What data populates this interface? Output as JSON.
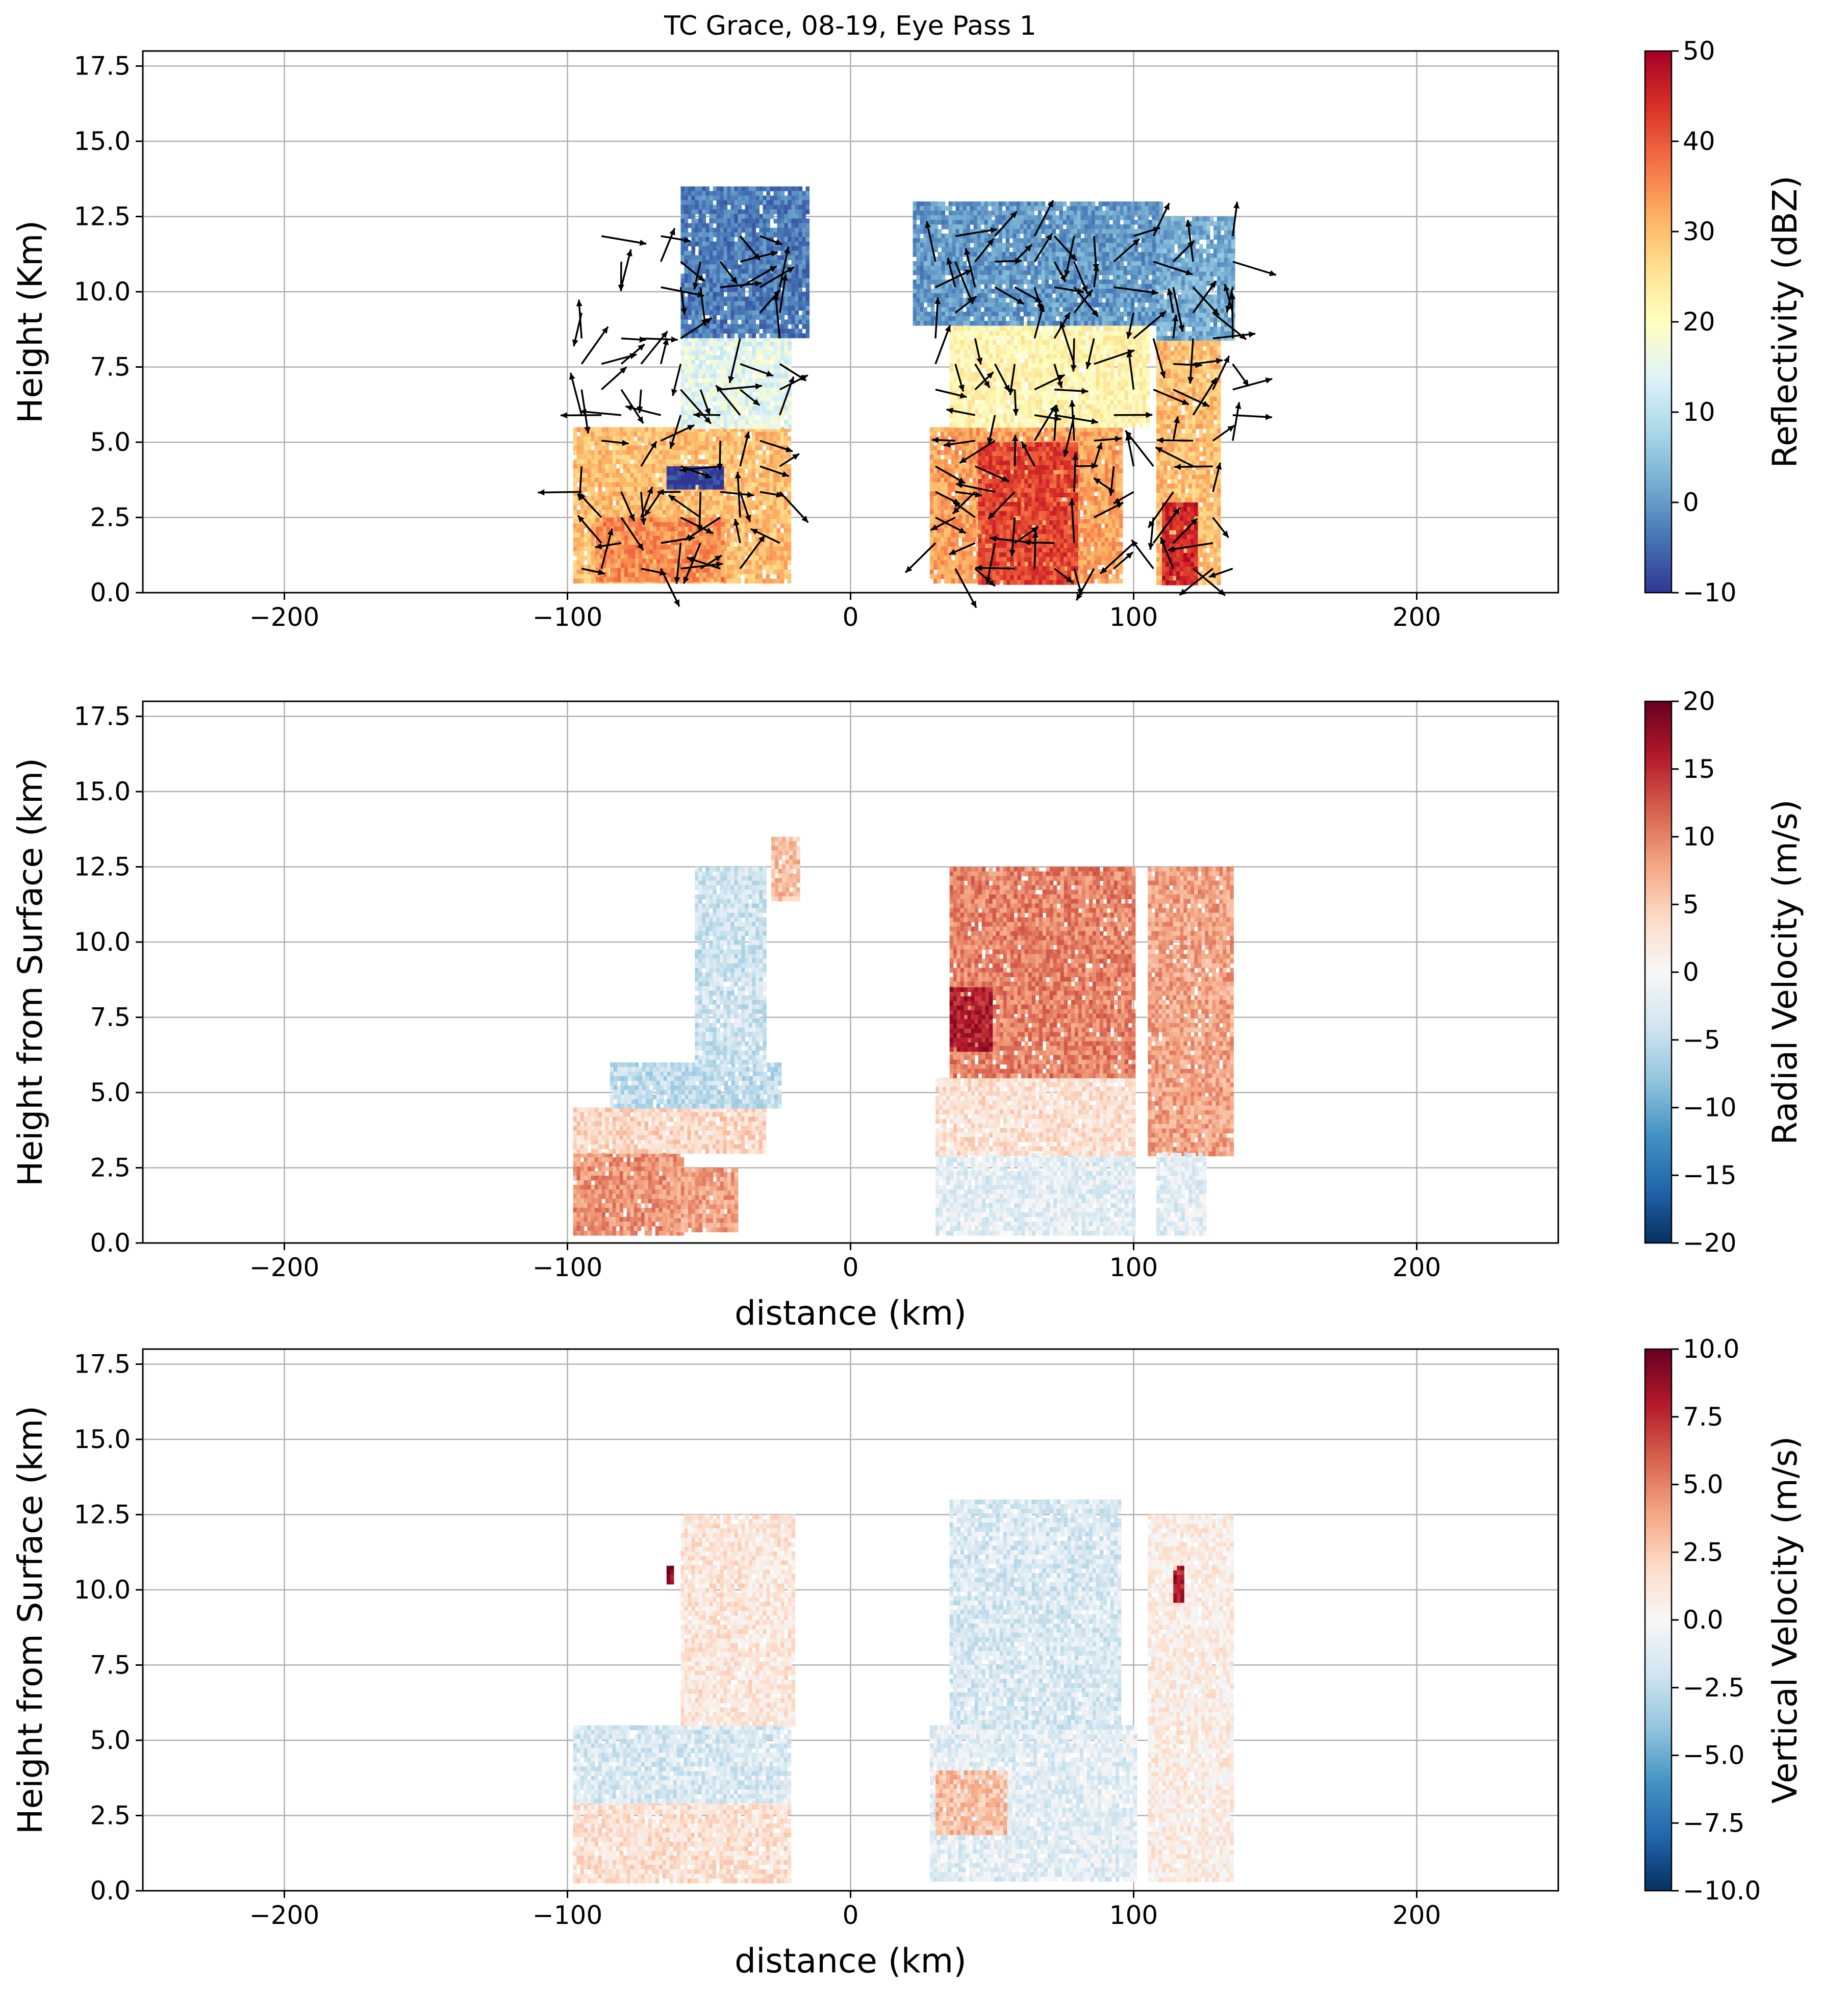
{
  "figure_title": "TC Grace, 08-19, Eye Pass 1",
  "chart_data": [
    {
      "type": "heatmap",
      "title": "TC Grace, 08-19, Eye Pass 1",
      "xlabel": "",
      "ylabel": "Height (Km)",
      "xlim": [
        -250,
        250
      ],
      "ylim": [
        0,
        18
      ],
      "grid": true,
      "x_ticks": [
        -200,
        -100,
        0,
        100,
        200
      ],
      "x_tick_labels": [
        "−200",
        "−100",
        "0",
        "100",
        "200"
      ],
      "y_ticks": [
        0,
        2.5,
        5,
        7.5,
        10,
        12.5,
        15,
        17.5
      ],
      "y_tick_labels": [
        "0.0",
        "2.5",
        "5.0",
        "7.5",
        "10.0",
        "12.5",
        "15.0",
        "17.5"
      ],
      "colorbar": {
        "label": "Reflectivity (dBZ)",
        "colormap": "RdYlBu_r",
        "range": [
          -10,
          50
        ],
        "ticks": [
          -10,
          0,
          10,
          20,
          30,
          40,
          50
        ],
        "tick_labels": [
          "−10",
          "0",
          "10",
          "20",
          "30",
          "40",
          "50"
        ]
      },
      "field": "reflectivity",
      "wind_vectors": true,
      "regions": [
        {
          "x": [
            -98,
            -22
          ],
          "y": [
            0.4,
            5.5
          ],
          "value": 30
        },
        {
          "x": [
            -90,
            -45
          ],
          "y": [
            0.4,
            2.5
          ],
          "value": 35
        },
        {
          "x": [
            -60,
            -22
          ],
          "y": [
            5.5,
            8.5
          ],
          "value": 15
        },
        {
          "x": [
            -60,
            -15
          ],
          "y": [
            8.5,
            13.5
          ],
          "value": -3
        },
        {
          "x": [
            -65,
            -45
          ],
          "y": [
            3.5,
            4.2
          ],
          "value": -10
        },
        {
          "x": [
            28,
            95
          ],
          "y": [
            0.4,
            5.5
          ],
          "value": 33
        },
        {
          "x": [
            45,
            80
          ],
          "y": [
            0.4,
            5.0
          ],
          "value": 42
        },
        {
          "x": [
            35,
            105
          ],
          "y": [
            5.5,
            9.0
          ],
          "value": 22
        },
        {
          "x": [
            22,
            110
          ],
          "y": [
            9.0,
            13.0
          ],
          "value": 0
        },
        {
          "x": [
            108,
            130
          ],
          "y": [
            0.4,
            8.5
          ],
          "value": 30
        },
        {
          "x": [
            110,
            122
          ],
          "y": [
            0.4,
            3.0
          ],
          "value": 45
        },
        {
          "x": [
            108,
            135
          ],
          "y": [
            8.5,
            12.5
          ],
          "value": 2
        }
      ]
    },
    {
      "type": "heatmap",
      "title": "",
      "xlabel": "distance (km)",
      "ylabel": "Height from Surface (km)",
      "xlim": [
        -250,
        250
      ],
      "ylim": [
        0,
        18
      ],
      "grid": true,
      "x_ticks": [
        -200,
        -100,
        0,
        100,
        200
      ],
      "x_tick_labels": [
        "−200",
        "−100",
        "0",
        "100",
        "200"
      ],
      "y_ticks": [
        0,
        2.5,
        5,
        7.5,
        10,
        12.5,
        15,
        17.5
      ],
      "y_tick_labels": [
        "0.0",
        "2.5",
        "5.0",
        "7.5",
        "10.0",
        "12.5",
        "15.0",
        "17.5"
      ],
      "colorbar": {
        "label": "Radial Velocity (m/s)",
        "colormap": "RdBu_r",
        "range": [
          -20,
          20
        ],
        "ticks": [
          -20,
          -15,
          -10,
          -5,
          0,
          5,
          10,
          15,
          20
        ],
        "tick_labels": [
          "−20",
          "−15",
          "−10",
          "−5",
          "0",
          "5",
          "10",
          "15",
          "20"
        ]
      },
      "field": "radial_velocity",
      "wind_vectors": false,
      "regions": [
        {
          "x": [
            -98,
            -60
          ],
          "y": [
            0.4,
            3.0
          ],
          "value": 9
        },
        {
          "x": [
            -65,
            -40
          ],
          "y": [
            0.4,
            2.5
          ],
          "value": 8
        },
        {
          "x": [
            -98,
            -30
          ],
          "y": [
            3.0,
            4.5
          ],
          "value": 4
        },
        {
          "x": [
            -85,
            -25
          ],
          "y": [
            4.5,
            6.0
          ],
          "value": -5
        },
        {
          "x": [
            -55,
            -30
          ],
          "y": [
            6.0,
            12.5
          ],
          "value": -4
        },
        {
          "x": [
            -28,
            -18
          ],
          "y": [
            11.5,
            13.5
          ],
          "value": 6
        },
        {
          "x": [
            30,
            100
          ],
          "y": [
            0.4,
            3.0
          ],
          "value": -2
        },
        {
          "x": [
            30,
            100
          ],
          "y": [
            3.0,
            5.5
          ],
          "value": 3
        },
        {
          "x": [
            35,
            100
          ],
          "y": [
            5.5,
            12.5
          ],
          "value": 10
        },
        {
          "x": [
            35,
            50
          ],
          "y": [
            6.5,
            8.5
          ],
          "value": 16
        },
        {
          "x": [
            105,
            135
          ],
          "y": [
            3.0,
            12.5
          ],
          "value": 8
        },
        {
          "x": [
            108,
            125
          ],
          "y": [
            0.4,
            3.0
          ],
          "value": -2
        }
      ]
    },
    {
      "type": "heatmap",
      "title": "",
      "xlabel": "distance (km)",
      "ylabel": "Height from Surface (km)",
      "xlim": [
        -250,
        250
      ],
      "ylim": [
        0,
        18
      ],
      "grid": true,
      "x_ticks": [
        -200,
        -100,
        0,
        100,
        200
      ],
      "x_tick_labels": [
        "−200",
        "−100",
        "0",
        "100",
        "200"
      ],
      "y_ticks": [
        0,
        2.5,
        5,
        7.5,
        10,
        12.5,
        15,
        17.5
      ],
      "y_tick_labels": [
        "0.0",
        "2.5",
        "5.0",
        "7.5",
        "10.0",
        "12.5",
        "15.0",
        "17.5"
      ],
      "colorbar": {
        "label": "Vertical Velocity (m/s)",
        "colormap": "RdBu_r",
        "range": [
          -10,
          10
        ],
        "ticks": [
          -10,
          -7.5,
          -5,
          -2.5,
          0,
          2.5,
          5,
          7.5,
          10
        ],
        "tick_labels": [
          "−10.0",
          "−7.5",
          "−5.0",
          "−2.5",
          "0.0",
          "2.5",
          "5.0",
          "7.5",
          "10.0"
        ]
      },
      "field": "vertical_velocity",
      "wind_vectors": false,
      "regions": [
        {
          "x": [
            -98,
            -22
          ],
          "y": [
            0.4,
            3.0
          ],
          "value": 1.5
        },
        {
          "x": [
            -98,
            -22
          ],
          "y": [
            3.0,
            5.5
          ],
          "value": -1.5
        },
        {
          "x": [
            -60,
            -20
          ],
          "y": [
            5.5,
            12.5
          ],
          "value": 1.2
        },
        {
          "x": [
            -65,
            -63
          ],
          "y": [
            10.3,
            10.8
          ],
          "value": 9
        },
        {
          "x": [
            28,
            100
          ],
          "y": [
            0.4,
            5.5
          ],
          "value": -1
        },
        {
          "x": [
            30,
            55
          ],
          "y": [
            2.0,
            4.0
          ],
          "value": 3
        },
        {
          "x": [
            35,
            95
          ],
          "y": [
            5.5,
            13.0
          ],
          "value": -1.5
        },
        {
          "x": [
            105,
            135
          ],
          "y": [
            0.4,
            12.5
          ],
          "value": 0.8
        },
        {
          "x": [
            114,
            117
          ],
          "y": [
            9.7,
            10.8
          ],
          "value": 8
        }
      ]
    }
  ]
}
